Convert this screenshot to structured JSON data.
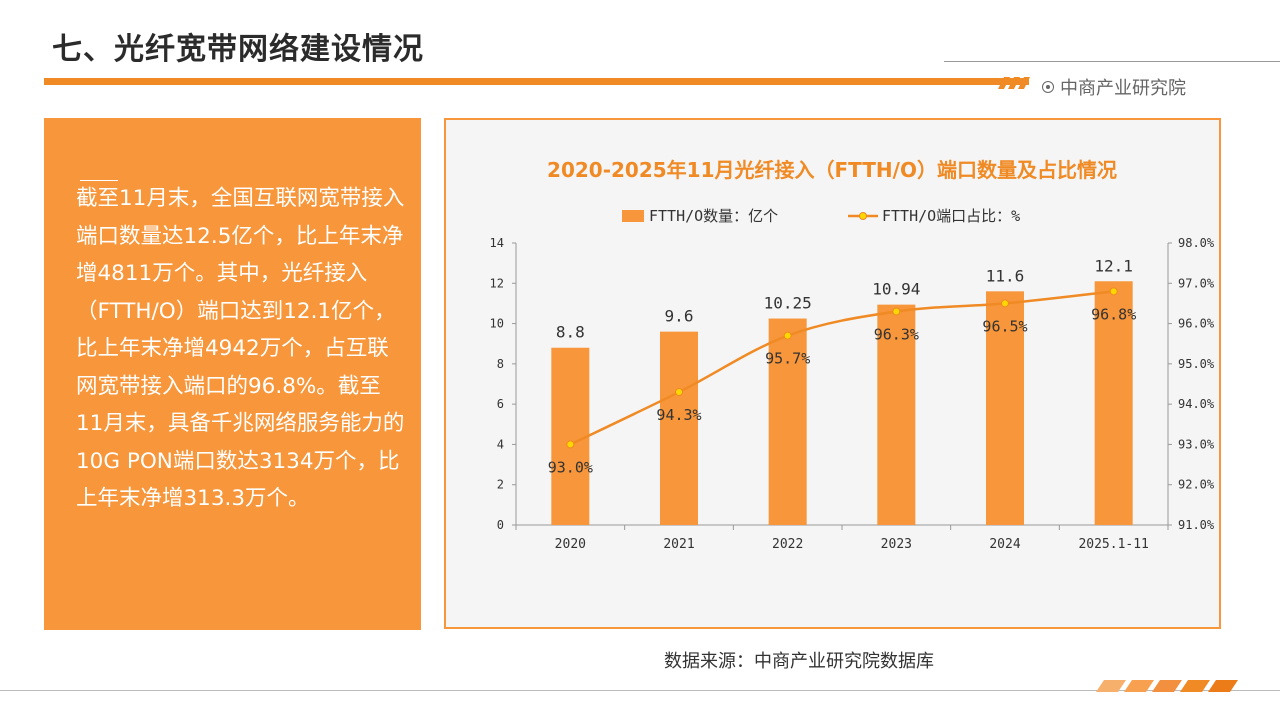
{
  "page": {
    "title": "七、光纤宽带网络建设情况",
    "brand": "中商产业研究院",
    "source": "数据来源：中商产业研究院数据库",
    "watermark": "中商产业研究院",
    "watermark_url": "www.askci.com/reports"
  },
  "left_panel": {
    "text": "截至11月末，全国互联网宽带接入端口数量达12.5亿个，比上年末净增4811万个。其中，光纤接入（FTTH/O）端口达到12.1亿个，比上年末净增4942万个，占互联网宽带接入端口的96.8%。截至11月末，具备千兆网络服务能力的10G PON端口数达3134万个，比上年末净增313.3万个。"
  },
  "colors": {
    "accent": "#f08a24",
    "bar": "#f7963a",
    "line": "#f08a24",
    "point": "#ffd700",
    "panel": "#f7963a"
  },
  "chart_data": {
    "type": "bar",
    "title": "2020-2025年11月光纤接入（FTTH/O）端口数量及占比情况",
    "categories": [
      "2020",
      "2021",
      "2022",
      "2023",
      "2024",
      "2025.1-11"
    ],
    "series": [
      {
        "name": "FTTH/O数量：亿个",
        "type": "bar",
        "axis": "left",
        "values": [
          8.8,
          9.6,
          10.25,
          10.94,
          11.6,
          12.1
        ],
        "labels": [
          "8.8",
          "9.6",
          "10.25",
          "10.94",
          "11.6",
          "12.1"
        ]
      },
      {
        "name": "FTTH/O端口占比：%",
        "type": "line",
        "axis": "right",
        "values": [
          93.0,
          94.3,
          95.7,
          96.3,
          96.5,
          96.8
        ],
        "labels": [
          "93.0%",
          "94.3%",
          "95.7%",
          "96.3%",
          "96.5%",
          "96.8%"
        ]
      }
    ],
    "y_left": {
      "min": 0,
      "max": 14,
      "ticks": [
        "0",
        "2",
        "4",
        "6",
        "8",
        "10",
        "12",
        "14"
      ]
    },
    "y_right": {
      "min": 91,
      "max": 98,
      "ticks": [
        "91.0%",
        "92.0%",
        "93.0%",
        "94.0%",
        "95.0%",
        "96.0%",
        "97.0%",
        "98.0%"
      ]
    },
    "legend_position": "top",
    "grid": false
  }
}
